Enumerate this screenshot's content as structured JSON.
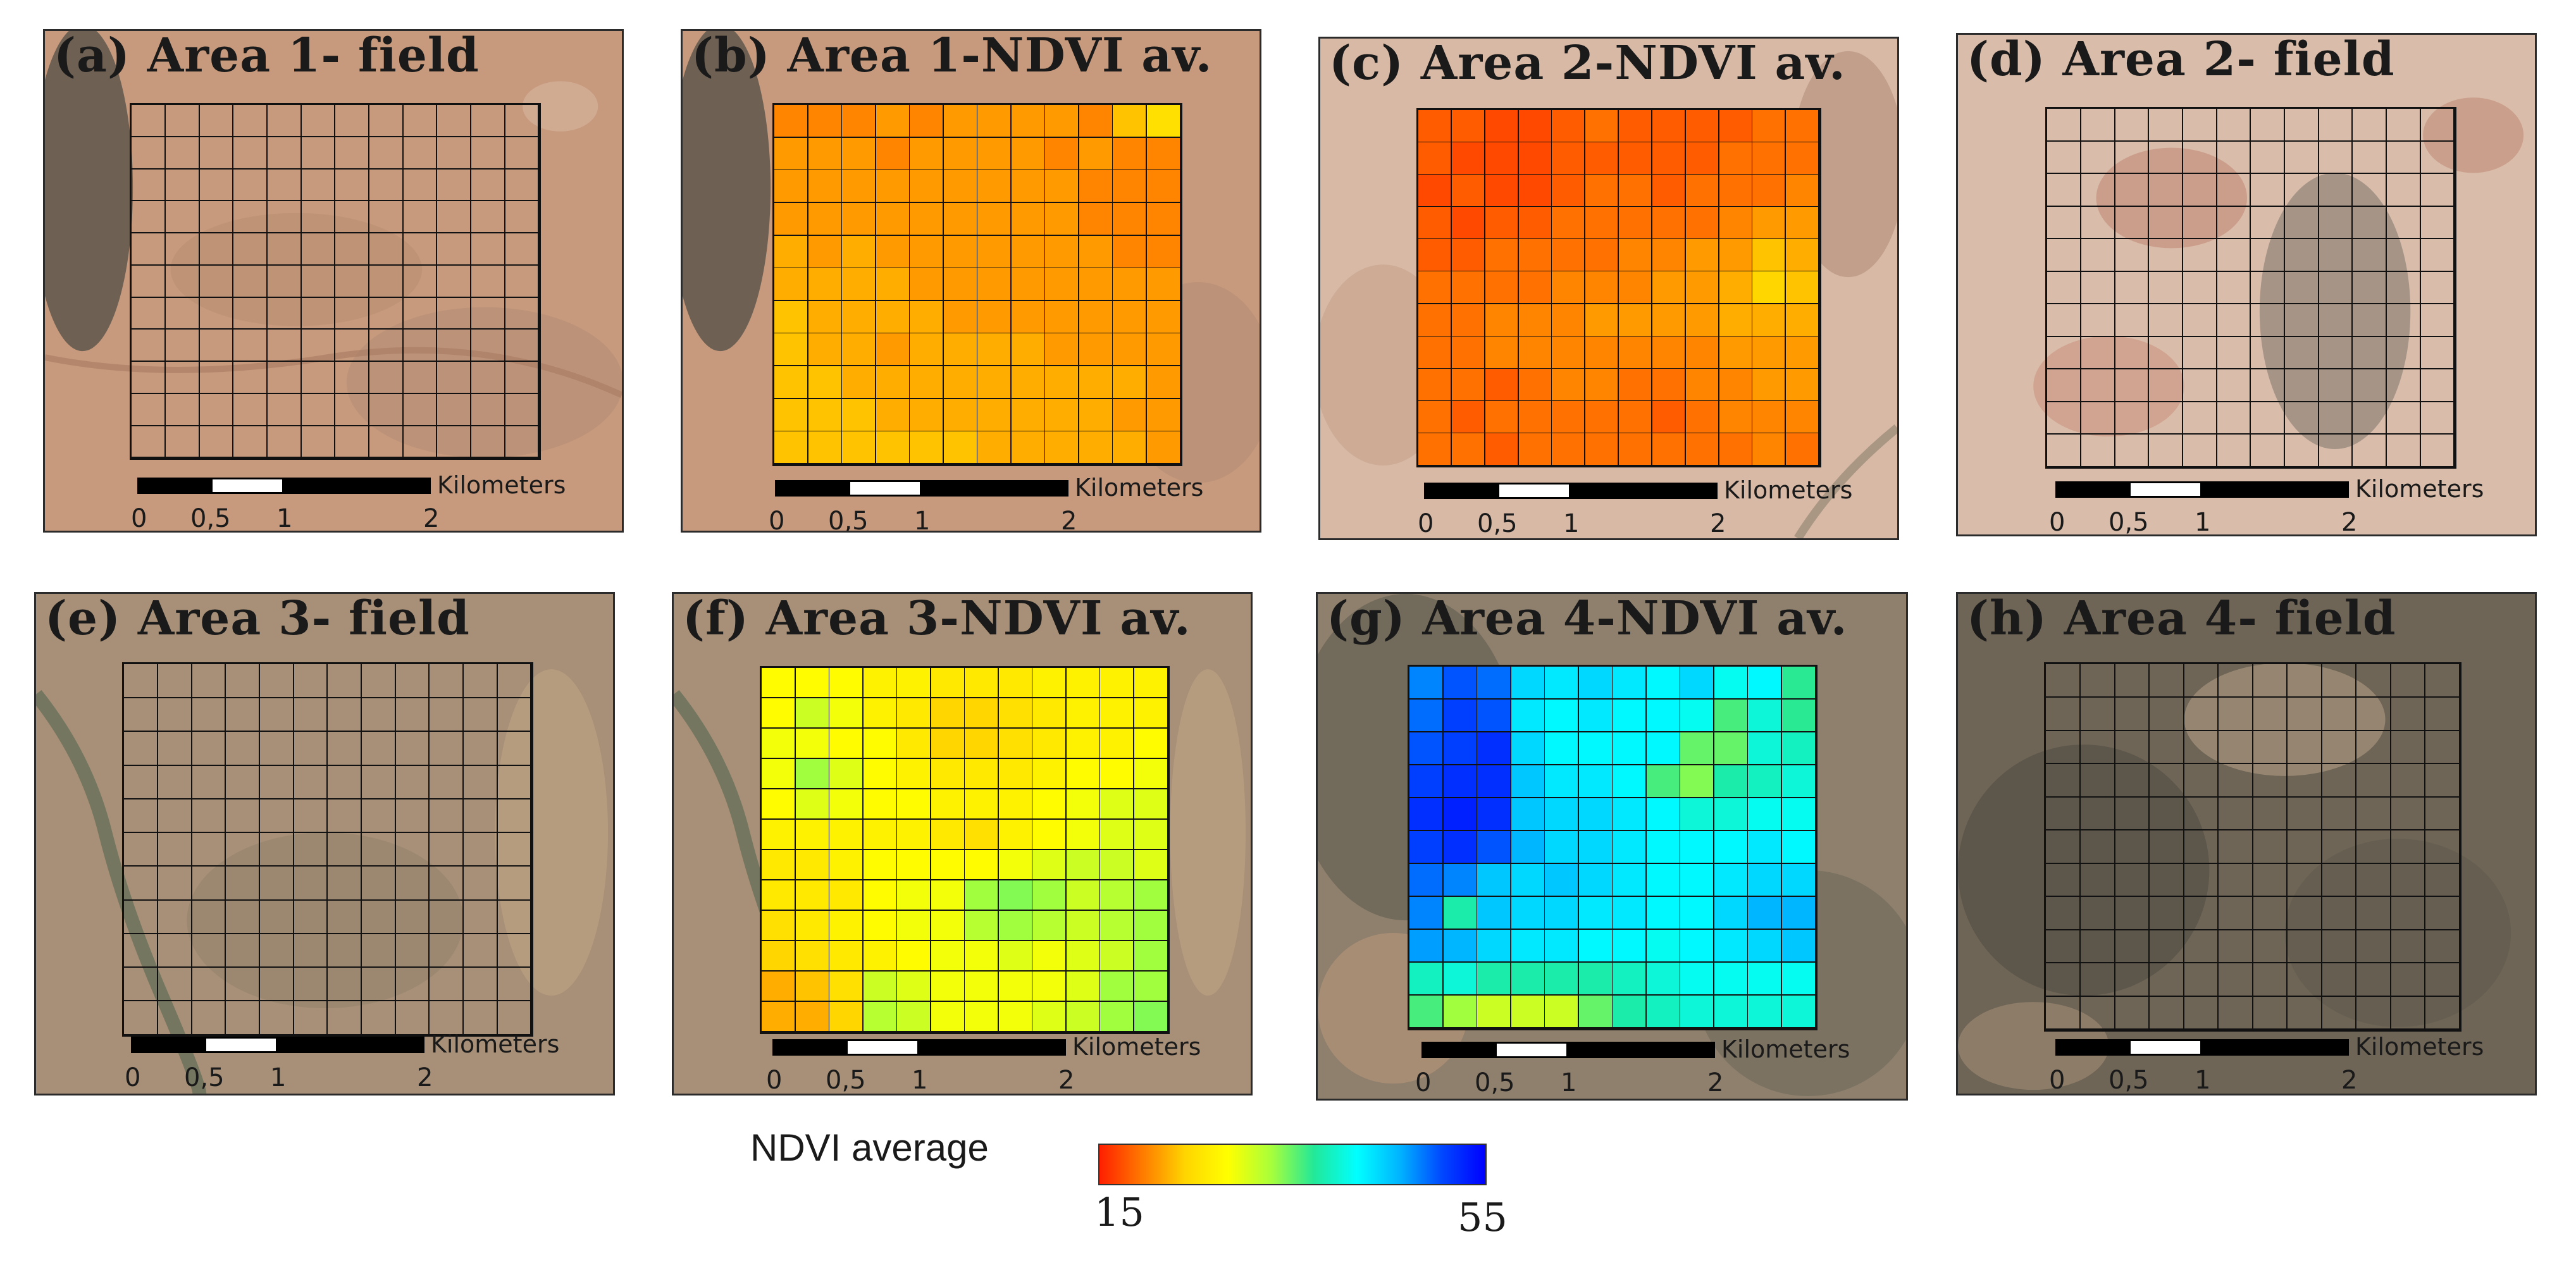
{
  "figure": {
    "legend": {
      "title": "NDVI average",
      "min": 15,
      "max": 55,
      "colors": [
        "#ff1f00",
        "#ff7a00",
        "#ffd500",
        "#ffff00",
        "#a8ff3a",
        "#22e898",
        "#00ffff",
        "#00b4ff",
        "#0046ff",
        "#0000ff"
      ]
    },
    "scale": {
      "unit": "Kilometers",
      "ticks": [
        "0",
        "0,5",
        "1",
        "2"
      ]
    },
    "panels": [
      {
        "id": "a",
        "title": "(a) Area 1- field",
        "kind": "field",
        "area": "Area 1"
      },
      {
        "id": "b",
        "title": "(b) Area 1-NDVI av.",
        "kind": "ndvi",
        "area": "Area 1"
      },
      {
        "id": "c",
        "title": "(c) Area 2-NDVI av.",
        "kind": "ndvi",
        "area": "Area 2"
      },
      {
        "id": "d",
        "title": "(d) Area 2- field",
        "kind": "field",
        "area": "Area 2"
      },
      {
        "id": "e",
        "title": "(e) Area 3- field",
        "kind": "field",
        "area": "Area 3"
      },
      {
        "id": "f",
        "title": "(f) Area 3-NDVI av.",
        "kind": "ndvi",
        "area": "Area 3"
      },
      {
        "id": "g",
        "title": "(g) Area 4-NDVI av.",
        "kind": "ndvi",
        "area": "Area 4"
      },
      {
        "id": "h",
        "title": "(h) Area 4- field",
        "kind": "field",
        "area": "Area 4"
      }
    ],
    "ndvi_grids": {
      "b": [
        [
          20,
          20,
          20,
          21,
          20,
          21,
          21,
          21,
          21,
          20,
          23,
          25
        ],
        [
          21,
          21,
          21,
          20,
          21,
          21,
          21,
          21,
          20,
          21,
          20,
          20
        ],
        [
          21,
          21,
          21,
          21,
          21,
          21,
          21,
          21,
          21,
          20,
          20,
          20
        ],
        [
          21,
          21,
          21,
          21,
          21,
          21,
          21,
          21,
          21,
          20,
          20,
          20
        ],
        [
          22,
          21,
          22,
          21,
          21,
          21,
          21,
          21,
          21,
          21,
          20,
          20
        ],
        [
          22,
          22,
          22,
          22,
          21,
          21,
          21,
          21,
          21,
          21,
          21,
          21
        ],
        [
          23,
          22,
          22,
          22,
          22,
          21,
          21,
          21,
          21,
          21,
          21,
          21
        ],
        [
          23,
          22,
          22,
          21,
          22,
          22,
          22,
          22,
          21,
          21,
          21,
          21
        ],
        [
          23,
          23,
          22,
          22,
          22,
          22,
          22,
          22,
          22,
          22,
          22,
          21
        ],
        [
          23,
          23,
          23,
          22,
          22,
          22,
          22,
          22,
          22,
          22,
          21,
          21
        ],
        [
          23,
          23,
          23,
          23,
          23,
          23,
          22,
          22,
          22,
          22,
          22,
          21
        ]
      ],
      "c": [
        [
          18,
          18,
          17,
          17,
          18,
          19,
          18,
          18,
          18,
          18,
          19,
          19
        ],
        [
          18,
          17,
          17,
          17,
          18,
          18,
          18,
          18,
          18,
          19,
          19,
          19
        ],
        [
          17,
          18,
          17,
          17,
          18,
          19,
          19,
          18,
          19,
          19,
          19,
          20
        ],
        [
          18,
          17,
          18,
          18,
          19,
          19,
          19,
          19,
          19,
          20,
          21,
          21
        ],
        [
          18,
          18,
          19,
          19,
          19,
          19,
          20,
          20,
          21,
          21,
          23,
          22
        ],
        [
          19,
          19,
          19,
          19,
          20,
          20,
          20,
          21,
          21,
          22,
          24,
          23
        ],
        [
          19,
          19,
          20,
          20,
          20,
          21,
          21,
          21,
          21,
          22,
          22,
          22
        ],
        [
          19,
          19,
          20,
          20,
          20,
          20,
          20,
          20,
          20,
          21,
          21,
          21
        ],
        [
          19,
          19,
          18,
          19,
          20,
          20,
          19,
          19,
          20,
          20,
          21,
          21
        ],
        [
          19,
          18,
          19,
          19,
          19,
          19,
          19,
          18,
          19,
          20,
          20,
          20
        ],
        [
          19,
          19,
          18,
          19,
          19,
          19,
          19,
          19,
          19,
          19,
          20,
          19
        ]
      ],
      "f": [
        [
          28,
          28,
          28,
          27,
          27,
          26,
          26,
          26,
          27,
          27,
          27,
          27
        ],
        [
          28,
          31,
          29,
          27,
          26,
          24,
          24,
          25,
          26,
          27,
          27,
          27
        ],
        [
          29,
          29,
          28,
          28,
          26,
          24,
          24,
          25,
          26,
          27,
          27,
          28
        ],
        [
          29,
          33,
          30,
          28,
          27,
          26,
          26,
          26,
          27,
          28,
          28,
          29
        ],
        [
          28,
          30,
          29,
          28,
          28,
          27,
          27,
          27,
          28,
          29,
          30,
          30
        ],
        [
          27,
          27,
          27,
          27,
          27,
          26,
          25,
          27,
          28,
          29,
          30,
          30
        ],
        [
          26,
          26,
          27,
          28,
          28,
          28,
          28,
          29,
          30,
          31,
          31,
          30
        ],
        [
          26,
          26,
          26,
          28,
          29,
          29,
          33,
          34,
          33,
          31,
          32,
          33
        ],
        [
          25,
          26,
          27,
          28,
          29,
          29,
          32,
          33,
          32,
          31,
          32,
          33
        ],
        [
          24,
          25,
          26,
          27,
          28,
          29,
          29,
          30,
          29,
          30,
          31,
          33
        ],
        [
          22,
          23,
          25,
          31,
          30,
          29,
          29,
          29,
          29,
          30,
          33,
          33
        ],
        [
          22,
          22,
          24,
          32,
          31,
          29,
          29,
          29,
          30,
          31,
          33,
          34
        ]
      ],
      "g": [
        [
          48,
          50,
          49,
          44,
          43,
          44,
          43,
          42,
          44,
          41,
          42,
          37
        ],
        [
          49,
          51,
          50,
          43,
          42,
          43,
          42,
          42,
          41,
          36,
          40,
          37
        ],
        [
          50,
          51,
          52,
          44,
          42,
          42,
          42,
          42,
          35,
          35,
          40,
          39
        ],
        [
          51,
          52,
          52,
          45,
          43,
          43,
          42,
          36,
          34,
          38,
          39,
          40
        ],
        [
          52,
          53,
          52,
          45,
          44,
          44,
          43,
          42,
          40,
          40,
          41,
          41
        ],
        [
          51,
          52,
          50,
          46,
          44,
          44,
          43,
          42,
          42,
          42,
          43,
          42
        ],
        [
          49,
          48,
          45,
          44,
          45,
          44,
          43,
          42,
          42,
          43,
          44,
          44
        ],
        [
          48,
          38,
          45,
          44,
          44,
          43,
          43,
          42,
          42,
          44,
          46,
          46
        ],
        [
          47,
          46,
          44,
          43,
          43,
          42,
          42,
          41,
          42,
          43,
          44,
          45
        ],
        [
          39,
          40,
          38,
          38,
          38,
          38,
          39,
          40,
          41,
          41,
          41,
          41
        ],
        [
          36,
          33,
          31,
          31,
          31,
          35,
          38,
          39,
          40,
          40,
          40,
          40
        ]
      ]
    }
  }
}
